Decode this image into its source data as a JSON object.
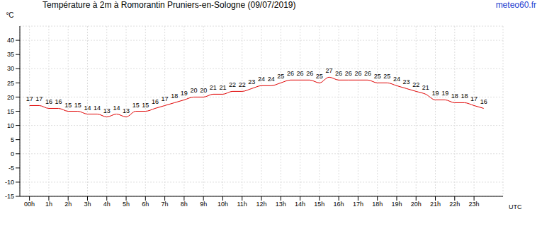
{
  "chart_data": {
    "type": "line",
    "title": "Température à 2m à Romorantin Pruniers-en-Sologne (09/07/2019)",
    "annotations": [
      "meteo60.fr"
    ],
    "x_label": "UTC",
    "y_label": "°C",
    "x": [
      0,
      0.5,
      1,
      1.5,
      2,
      2.5,
      3,
      3.5,
      4,
      4.5,
      5,
      5.5,
      6,
      6.5,
      7,
      7.5,
      8,
      8.5,
      9,
      9.5,
      10,
      10.5,
      11,
      11.5,
      12,
      12.5,
      13,
      13.5,
      14,
      14.5,
      15,
      15.5,
      16,
      16.5,
      17,
      17.5,
      18,
      18.5,
      19,
      19.5,
      20,
      20.5,
      21,
      21.5,
      22,
      22.5,
      23,
      23.5
    ],
    "values": [
      17,
      17,
      16,
      16,
      15,
      15,
      14,
      14,
      13,
      14,
      13,
      15,
      15,
      16,
      17,
      18,
      19,
      20,
      20,
      21,
      21,
      22,
      22,
      23,
      24,
      24,
      25,
      26,
      26,
      26,
      25,
      27,
      26,
      26,
      26,
      26,
      25,
      25,
      24,
      23,
      22,
      21,
      19,
      19,
      18,
      18,
      17,
      16
    ],
    "color": "#e00000",
    "line_style": "solid",
    "marker": "none",
    "data_labels": true,
    "grid": true,
    "xlim": [
      -0.5,
      24.5
    ],
    "xticks": [
      {
        "value": 0,
        "label": "00h"
      },
      {
        "value": 1,
        "label": "1h"
      },
      {
        "value": 2,
        "label": "2h"
      },
      {
        "value": 3,
        "label": "3h"
      },
      {
        "value": 4,
        "label": "4h"
      },
      {
        "value": 5,
        "label": "5h"
      },
      {
        "value": 6,
        "label": "6h"
      },
      {
        "value": 7,
        "label": "7h"
      },
      {
        "value": 8,
        "label": "8h"
      },
      {
        "value": 9,
        "label": "9h"
      },
      {
        "value": 10,
        "label": "10h"
      },
      {
        "value": 11,
        "label": "11h"
      },
      {
        "value": 12,
        "label": "12h"
      },
      {
        "value": 13,
        "label": "13h"
      },
      {
        "value": 14,
        "label": "14h"
      },
      {
        "value": 15,
        "label": "15h"
      },
      {
        "value": 16,
        "label": "16h"
      },
      {
        "value": 17,
        "label": "17h"
      },
      {
        "value": 18,
        "label": "18h"
      },
      {
        "value": 19,
        "label": "19h"
      },
      {
        "value": 20,
        "label": "20h"
      },
      {
        "value": 21,
        "label": "21h"
      },
      {
        "value": 22,
        "label": "22h"
      },
      {
        "value": 23,
        "label": "23h"
      }
    ],
    "ylim": [
      -15,
      45
    ],
    "yticks": [
      -15,
      -10,
      -5,
      0,
      5,
      10,
      15,
      20,
      25,
      30,
      35,
      40
    ]
  }
}
